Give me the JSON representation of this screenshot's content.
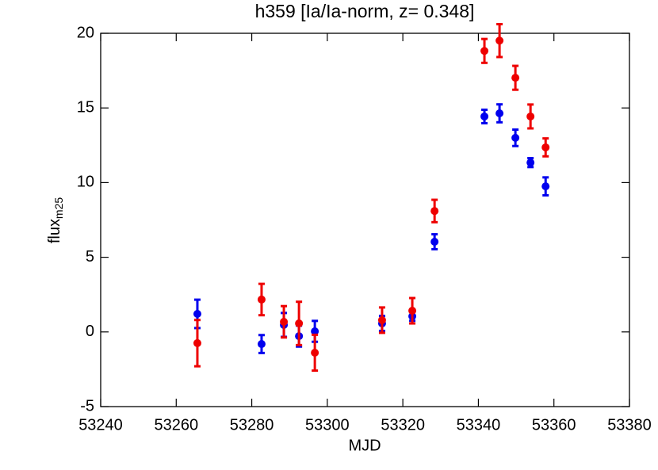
{
  "chart_data": {
    "type": "scatter",
    "title": "h359    [Ia/Ia-norm,  z= 0.348]",
    "xlabel": "MJD",
    "ylabel": "flux",
    "ylabel_subscript": "m25",
    "x": [
      53265.6,
      53282.6,
      53288.5,
      53292.5,
      53296.7,
      53314.5,
      53322.5,
      53328.4,
      53341.6,
      53345.6,
      53349.8,
      53353.8,
      53357.8
    ],
    "series": [
      {
        "color": "#0000ee",
        "values": [
          1.21,
          -0.81,
          0.47,
          -0.28,
          0.04,
          0.57,
          1.05,
          6.04,
          14.43,
          14.64,
          13.0,
          11.34,
          9.75
        ],
        "errors": [
          0.95,
          0.6,
          0.8,
          0.7,
          0.7,
          0.5,
          0.3,
          0.5,
          0.45,
          0.6,
          0.55,
          0.3,
          0.6
        ]
      },
      {
        "color": "#ee0000",
        "values": [
          -0.75,
          2.17,
          0.68,
          0.57,
          -1.39,
          0.79,
          1.42,
          8.1,
          18.82,
          19.51,
          17.02,
          14.43,
          12.36
        ],
        "errors": [
          1.55,
          1.05,
          1.05,
          1.45,
          1.2,
          0.85,
          0.85,
          0.75,
          0.8,
          1.1,
          0.8,
          0.8,
          0.6
        ]
      }
    ],
    "xlim": [
      53240,
      53380
    ],
    "xticks": [
      53240,
      53260,
      53280,
      53300,
      53320,
      53340,
      53360,
      53380
    ],
    "ylim": [
      -5,
      20
    ],
    "yticks": [
      -5,
      0,
      5,
      10,
      15,
      20
    ]
  }
}
